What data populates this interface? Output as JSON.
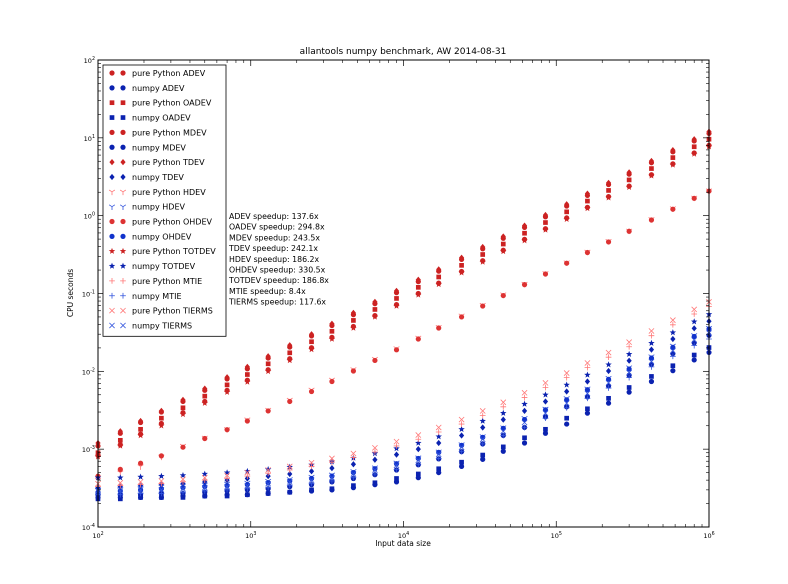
{
  "chart_data": {
    "type": "scatter",
    "title": "allantools numpy benchmark, AW 2014-08-31",
    "xlabel": "Input data size",
    "ylabel": "CPU seconds",
    "xscale": "log",
    "yscale": "log",
    "xlim": [
      100,
      1000000
    ],
    "ylim": [
      0.0001,
      100
    ],
    "x_ticks": [
      {
        "value": 100,
        "base": "10",
        "exp": "2"
      },
      {
        "value": 1000,
        "base": "10",
        "exp": "3"
      },
      {
        "value": 10000,
        "base": "10",
        "exp": "4"
      },
      {
        "value": 100000,
        "base": "10",
        "exp": "5"
      },
      {
        "value": 1000000,
        "base": "10",
        "exp": "6"
      }
    ],
    "y_ticks": [
      {
        "value": 0.0001,
        "base": "10",
        "exp": "-4"
      },
      {
        "value": 0.001,
        "base": "10",
        "exp": "-3"
      },
      {
        "value": 0.01,
        "base": "10",
        "exp": "-2"
      },
      {
        "value": 0.1,
        "base": "10",
        "exp": "-1"
      },
      {
        "value": 1,
        "base": "10",
        "exp": "0"
      },
      {
        "value": 10,
        "base": "10",
        "exp": "1"
      },
      {
        "value": 100,
        "base": "10",
        "exp": "2"
      }
    ],
    "grid": false,
    "legend_position": "top-left",
    "x": [
      100,
      140,
      190,
      260,
      360,
      500,
      700,
      950,
      1300,
      1800,
      2500,
      3400,
      4700,
      6500,
      9000,
      12500,
      17000,
      24000,
      33000,
      45000,
      62000,
      85000,
      117000,
      160000,
      220000,
      300000,
      420000,
      580000,
      800000,
      1000000
    ],
    "series": [
      {
        "name": "pure Python ADEV",
        "marker": "circle",
        "color": "#cc2222",
        "values": [
          0.00083,
          0.00114,
          0.00156,
          0.00214,
          0.00294,
          0.0041,
          0.0057,
          0.0077,
          0.0105,
          0.0145,
          0.0201,
          0.0273,
          0.0377,
          0.052,
          0.072,
          0.1,
          0.136,
          0.192,
          0.264,
          0.36,
          0.496,
          0.68,
          0.936,
          1.28,
          1.76,
          2.4,
          3.36,
          4.64,
          6.4,
          8.0
        ]
      },
      {
        "name": "numpy ADEV",
        "marker": "circle",
        "color": "#0b22b0",
        "values": [
          0.00024,
          0.00024,
          0.00024,
          0.00024,
          0.00025,
          0.00025,
          0.00026,
          0.00026,
          0.00027,
          0.00028,
          0.00029,
          0.0003,
          0.00032,
          0.00035,
          0.00038,
          0.00043,
          0.0005,
          0.0006,
          0.00074,
          0.00094,
          0.0012,
          0.0016,
          0.0021,
          0.0029,
          0.0039,
          0.0054,
          0.0074,
          0.0102,
          0.014,
          0.0175
        ]
      },
      {
        "name": "pure Python OADEV",
        "marker": "square",
        "color": "#cc2222",
        "values": [
          0.0009,
          0.0013,
          0.0018,
          0.0025,
          0.0034,
          0.0048,
          0.0067,
          0.0091,
          0.0125,
          0.0173,
          0.024,
          0.0327,
          0.0451,
          0.0624,
          0.0864,
          0.12,
          0.163,
          0.23,
          0.317,
          0.432,
          0.595,
          0.816,
          1.12,
          1.54,
          2.11,
          2.88,
          4.03,
          5.57,
          7.68,
          9.6
        ]
      },
      {
        "name": "numpy OADEV",
        "marker": "square",
        "color": "#0b22b0",
        "values": [
          0.00023,
          0.00023,
          0.00024,
          0.00024,
          0.00024,
          0.00025,
          0.00025,
          0.00026,
          0.00027,
          0.00028,
          0.0003,
          0.00031,
          0.00034,
          0.00037,
          0.00042,
          0.00048,
          0.00056,
          0.00068,
          0.00084,
          0.00107,
          0.0014,
          0.0018,
          0.0025,
          0.0033,
          0.0045,
          0.0062,
          0.0086,
          0.0118,
          0.0162,
          0.0202
        ]
      },
      {
        "name": "pure Python MDEV",
        "marker": "circle",
        "color": "#cc2222",
        "values": [
          0.0011,
          0.0016,
          0.0022,
          0.003,
          0.0041,
          0.0057,
          0.008,
          0.0108,
          0.0148,
          0.0205,
          0.0285,
          0.0388,
          0.0535,
          0.074,
          0.1026,
          0.142,
          0.194,
          0.274,
          0.376,
          0.513,
          0.707,
          0.969,
          1.33,
          1.82,
          2.51,
          3.42,
          4.79,
          6.61,
          9.12,
          11.4
        ]
      },
      {
        "name": "numpy MDEV",
        "marker": "circle",
        "color": "#0b22b0",
        "values": [
          0.00026,
          0.00026,
          0.00026,
          0.00027,
          0.00027,
          0.00028,
          0.00029,
          0.0003,
          0.00031,
          0.00033,
          0.00035,
          0.00038,
          0.00042,
          0.00047,
          0.00054,
          0.00063,
          0.00075,
          0.00093,
          0.00117,
          0.0015,
          0.0019,
          0.0026,
          0.0035,
          0.0047,
          0.0065,
          0.0089,
          0.0123,
          0.0169,
          0.0233,
          0.029
        ]
      },
      {
        "name": "pure Python TDEV",
        "marker": "diamond",
        "color": "#cc2222",
        "values": [
          0.0012,
          0.0017,
          0.0023,
          0.0031,
          0.0043,
          0.006,
          0.0084,
          0.0114,
          0.0156,
          0.0216,
          0.03,
          0.0408,
          0.0564,
          0.078,
          0.108,
          0.15,
          0.204,
          0.288,
          0.396,
          0.54,
          0.744,
          1.02,
          1.4,
          1.92,
          2.64,
          3.6,
          5.04,
          6.96,
          9.6,
          12.0
        ]
      },
      {
        "name": "numpy TDEV",
        "marker": "diamond",
        "color": "#0b22b0",
        "values": [
          0.00032,
          0.00033,
          0.00034,
          0.00035,
          0.00036,
          0.00038,
          0.0004,
          0.00042,
          0.00045,
          0.00048,
          0.00052,
          0.00057,
          0.00064,
          0.00073,
          0.00085,
          0.001,
          0.0012,
          0.0015,
          0.0019,
          0.0024,
          0.0031,
          0.0041,
          0.0055,
          0.0074,
          0.0101,
          0.0137,
          0.019,
          0.026,
          0.0357,
          0.044
        ]
      },
      {
        "name": "pure Python HDEV",
        "marker": "tri_down",
        "color": "#ff7777",
        "values": [
          0.0004,
          0.0005,
          0.0006,
          0.0008,
          0.0011,
          0.0014,
          0.0018,
          0.0024,
          0.0032,
          0.0043,
          0.0058,
          0.0078,
          0.0106,
          0.0144,
          0.0197,
          0.027,
          0.037,
          0.052,
          0.071,
          0.097,
          0.133,
          0.182,
          0.25,
          0.343,
          0.47,
          0.64,
          0.9,
          1.24,
          1.7,
          2.1
        ]
      },
      {
        "name": "numpy HDEV",
        "marker": "tri_down",
        "color": "#3355dd",
        "values": [
          0.0003,
          0.00031,
          0.00032,
          0.00033,
          0.00034,
          0.00035,
          0.00036,
          0.00037,
          0.00039,
          0.00041,
          0.00044,
          0.00047,
          0.00052,
          0.00058,
          0.00067,
          0.00078,
          0.00093,
          0.00115,
          0.00146,
          0.0019,
          0.0025,
          0.0033,
          0.0045,
          0.006,
          0.0082,
          0.0112,
          0.0155,
          0.0213,
          0.029,
          0.036
        ]
      },
      {
        "name": "pure Python OHDEV",
        "marker": "circle",
        "color": "#dd3333",
        "values": [
          0.00045,
          0.00055,
          0.00066,
          0.00082,
          0.00106,
          0.00137,
          0.00178,
          0.0023,
          0.0031,
          0.0041,
          0.0055,
          0.0074,
          0.0101,
          0.0138,
          0.0189,
          0.026,
          0.036,
          0.05,
          0.069,
          0.094,
          0.13,
          0.178,
          0.245,
          0.336,
          0.46,
          0.63,
          0.88,
          1.21,
          1.67,
          2.07
        ]
      },
      {
        "name": "numpy OHDEV",
        "marker": "circle",
        "color": "#1133cc",
        "values": [
          0.00028,
          0.00029,
          0.0003,
          0.00031,
          0.00032,
          0.00033,
          0.00034,
          0.00035,
          0.00037,
          0.00039,
          0.00042,
          0.00045,
          0.0005,
          0.00056,
          0.00065,
          0.00076,
          0.00091,
          0.00112,
          0.00142,
          0.00185,
          0.0024,
          0.0032,
          0.0043,
          0.0058,
          0.0079,
          0.0107,
          0.0148,
          0.0203,
          0.028,
          0.035
        ]
      },
      {
        "name": "pure Python TOTDEV",
        "marker": "star",
        "color": "#cc2222",
        "values": [
          0.0008,
          0.0011,
          0.0015,
          0.002,
          0.0028,
          0.0039,
          0.0054,
          0.0073,
          0.01,
          0.0138,
          0.0191,
          0.026,
          0.036,
          0.05,
          0.069,
          0.096,
          0.131,
          0.185,
          0.254,
          0.347,
          0.478,
          0.656,
          0.9,
          1.24,
          1.7,
          2.32,
          3.25,
          4.49,
          6.2,
          7.7
        ]
      },
      {
        "name": "numpy TOTDEV",
        "marker": "star",
        "color": "#0b22b0",
        "values": [
          0.00043,
          0.00043,
          0.00044,
          0.00045,
          0.00046,
          0.00048,
          0.0005,
          0.00052,
          0.00055,
          0.00059,
          0.00063,
          0.00069,
          0.00077,
          0.00088,
          0.00102,
          0.0012,
          0.00145,
          0.0018,
          0.0023,
          0.0029,
          0.0038,
          0.005,
          0.0067,
          0.009,
          0.0122,
          0.0166,
          0.023,
          0.0315,
          0.0435,
          0.054
        ]
      },
      {
        "name": "pure Python MTIE",
        "marker": "plus",
        "color": "#ff7777",
        "values": [
          0.00033,
          0.00034,
          0.00035,
          0.00036,
          0.00038,
          0.0004,
          0.00042,
          0.00045,
          0.00049,
          0.00054,
          0.0006,
          0.00068,
          0.00078,
          0.00092,
          0.0011,
          0.00134,
          0.00166,
          0.0021,
          0.0027,
          0.0035,
          0.0046,
          0.0062,
          0.0083,
          0.0112,
          0.0152,
          0.0207,
          0.0287,
          0.0396,
          0.0545,
          0.068
        ]
      },
      {
        "name": "numpy MTIE",
        "marker": "plus",
        "color": "#3355dd",
        "values": [
          0.00026,
          0.00026,
          0.00027,
          0.00027,
          0.00028,
          0.00029,
          0.0003,
          0.00031,
          0.00032,
          0.00034,
          0.00036,
          0.00039,
          0.00043,
          0.00048,
          0.00055,
          0.00064,
          0.00076,
          0.00093,
          0.00117,
          0.0015,
          0.0019,
          0.0025,
          0.0034,
          0.0045,
          0.0061,
          0.0083,
          0.0114,
          0.0156,
          0.0214,
          0.026
        ]
      },
      {
        "name": "pure Python TIERMS",
        "marker": "x",
        "color": "#ff7777",
        "values": [
          0.00036,
          0.00037,
          0.00038,
          0.00039,
          0.00041,
          0.00043,
          0.00046,
          0.0005,
          0.00054,
          0.0006,
          0.00067,
          0.00076,
          0.00088,
          0.00104,
          0.00125,
          0.00152,
          0.0019,
          0.0024,
          0.0031,
          0.004,
          0.0053,
          0.0071,
          0.0095,
          0.0128,
          0.0174,
          0.0237,
          0.033,
          0.0454,
          0.0625,
          0.078
        ]
      },
      {
        "name": "numpy TIERMS",
        "marker": "x",
        "color": "#3355dd",
        "values": [
          0.00029,
          0.00029,
          0.0003,
          0.0003,
          0.00031,
          0.00032,
          0.00033,
          0.00034,
          0.00036,
          0.00038,
          0.0004,
          0.00043,
          0.00048,
          0.00054,
          0.00062,
          0.00072,
          0.00086,
          0.00106,
          0.00134,
          0.0017,
          0.0022,
          0.0029,
          0.0039,
          0.0052,
          0.0071,
          0.0096,
          0.0133,
          0.0183,
          0.0252,
          0.031
        ]
      }
    ],
    "annotation_lines": [
      "ADEV speedup: 137.6x",
      "OADEV speedup: 294.8x",
      "MDEV speedup: 243.5x",
      "TDEV speedup: 242.1x",
      "HDEV speedup: 186.2x",
      "OHDEV speedup: 330.5x",
      "TOTDEV speedup: 186.8x",
      "MTIE speedup: 8.4x",
      "TIERMS speedup: 117.6x"
    ]
  }
}
